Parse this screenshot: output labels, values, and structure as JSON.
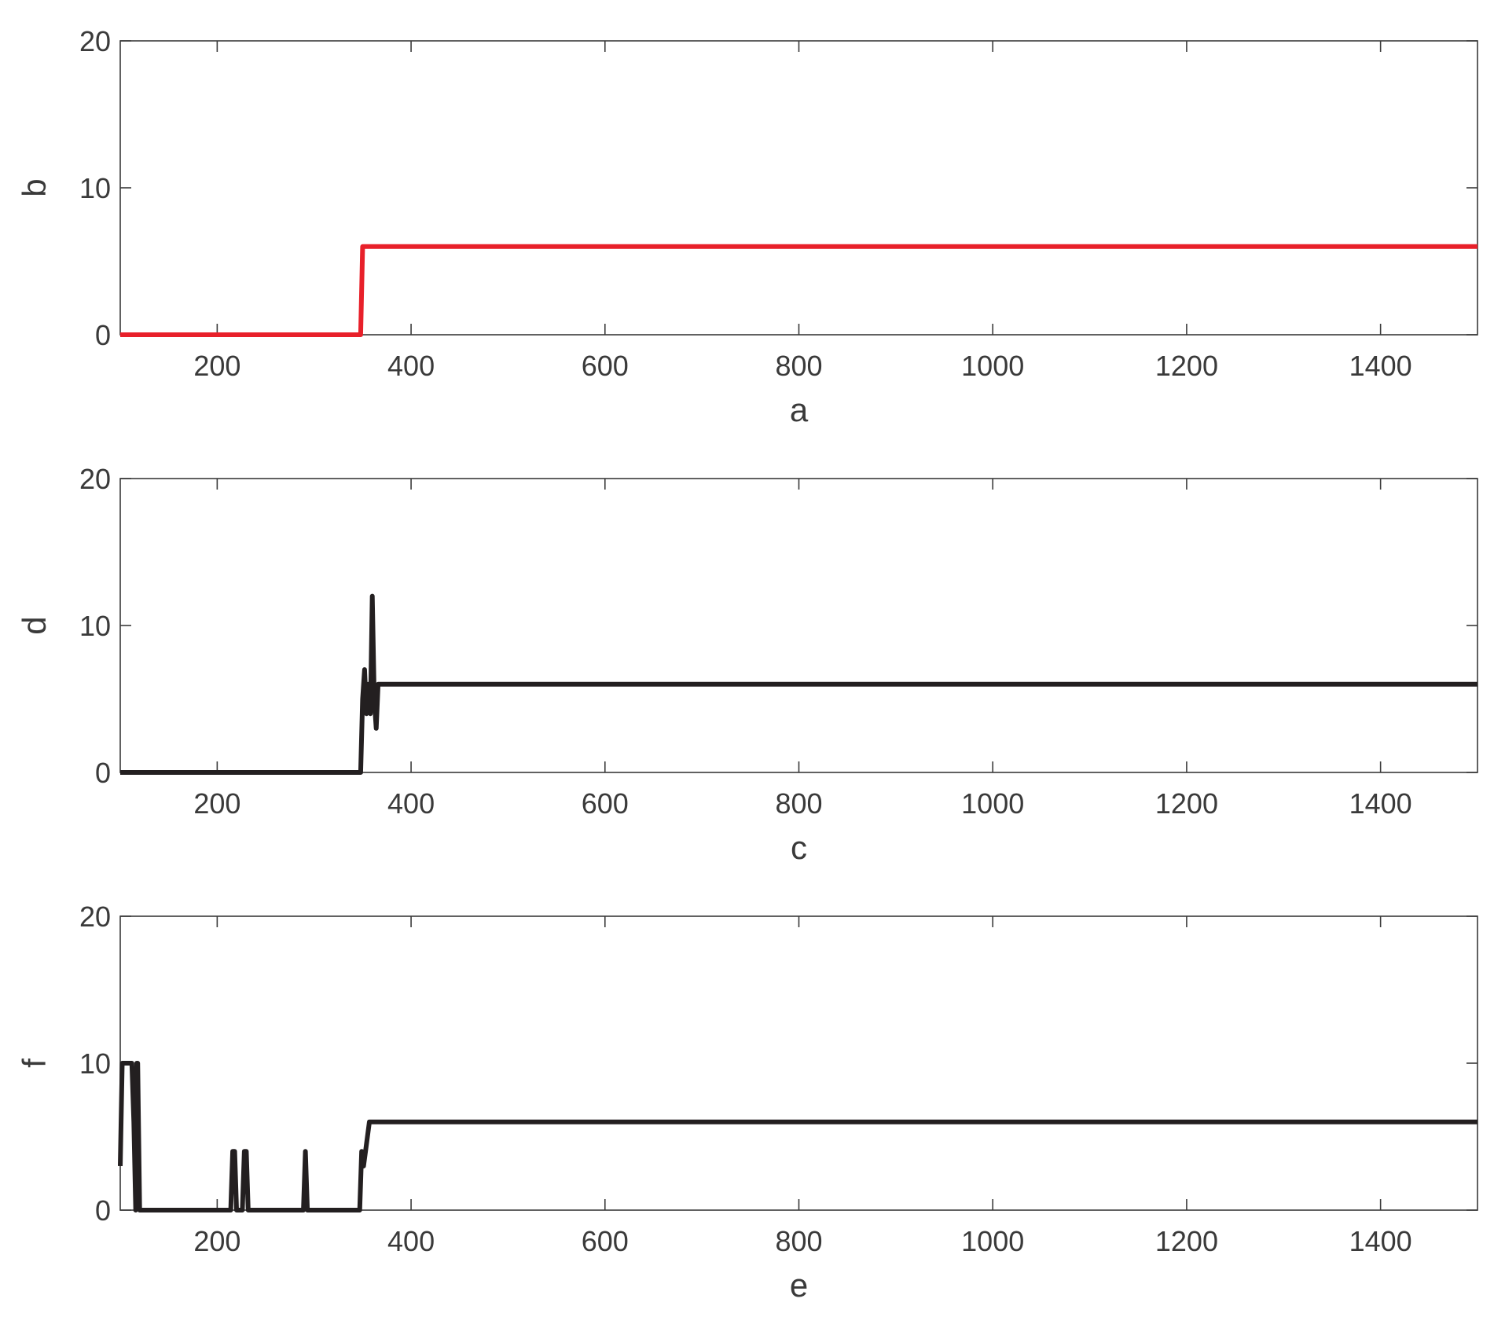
{
  "chart_data": [
    {
      "type": "line",
      "xlabel": "a",
      "ylabel": "b",
      "xlim": [
        100,
        1500
      ],
      "ylim": [
        0,
        20
      ],
      "xticks": [
        "200",
        "400",
        "600",
        "800",
        "1000",
        "1200",
        "1400"
      ],
      "yticks": [
        "0",
        "10",
        "20"
      ],
      "grid": false,
      "series": [
        {
          "color": "#e8202a",
          "x": [
            100,
            348,
            350,
            1500
          ],
          "y": [
            0,
            0,
            6,
            6
          ]
        }
      ]
    },
    {
      "type": "line",
      "xlabel": "c",
      "ylabel": "d",
      "xlim": [
        100,
        1500
      ],
      "ylim": [
        0,
        20
      ],
      "xticks": [
        "200",
        "400",
        "600",
        "800",
        "1000",
        "1200",
        "1400"
      ],
      "yticks": [
        "0",
        "10",
        "20"
      ],
      "grid": false,
      "series": [
        {
          "color": "#231f20",
          "x": [
            100,
            348,
            350,
            352,
            354,
            356,
            358,
            360,
            362,
            364,
            366,
            1500
          ],
          "y": [
            0,
            0,
            5,
            7,
            4,
            6,
            4,
            12,
            5,
            3,
            6,
            6
          ]
        }
      ]
    },
    {
      "type": "line",
      "xlabel": "e",
      "ylabel": "f",
      "xlim": [
        100,
        1500
      ],
      "ylim": [
        0,
        20
      ],
      "xticks": [
        "200",
        "400",
        "600",
        "800",
        "1000",
        "1200",
        "1400"
      ],
      "yticks": [
        "0",
        "10",
        "20"
      ],
      "grid": false,
      "series": [
        {
          "color": "#231f20",
          "x": [
            100,
            102,
            104,
            110,
            112,
            114,
            116,
            117,
            118,
            120,
            122,
            214,
            216,
            218,
            220,
            226,
            228,
            230,
            232,
            289,
            291,
            293,
            347,
            349,
            351,
            353,
            357,
            1500
          ],
          "y": [
            3,
            10,
            10,
            10,
            10,
            6,
            0,
            10,
            10,
            0,
            0,
            0,
            4,
            4,
            0,
            0,
            4,
            4,
            0,
            0,
            4,
            0,
            0,
            4,
            3,
            4,
            6,
            6
          ]
        }
      ]
    }
  ]
}
